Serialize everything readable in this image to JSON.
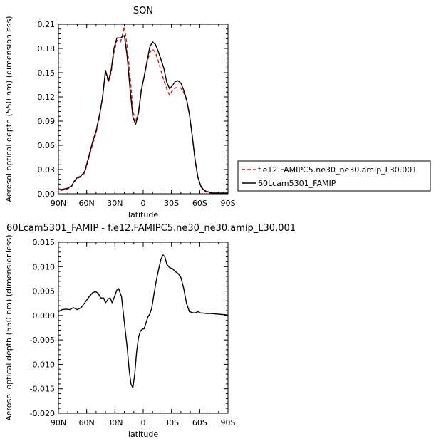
{
  "chart_data": [
    {
      "type": "line",
      "title": "SON",
      "xlabel": "latitude",
      "ylabel": "Aerosol optical depth (550 nm) (dimensionless)",
      "xlim": [
        90,
        -90
      ],
      "ylim": [
        0,
        0.21
      ],
      "x_ticks": [
        {
          "value": 90,
          "label": "90N"
        },
        {
          "value": 60,
          "label": "60N"
        },
        {
          "value": 30,
          "label": "30N"
        },
        {
          "value": 0,
          "label": "0"
        },
        {
          "value": -30,
          "label": "30S"
        },
        {
          "value": -60,
          "label": "60S"
        },
        {
          "value": -90,
          "label": "90S"
        }
      ],
      "y_ticks": [
        {
          "value": 0,
          "label": "0.00"
        },
        {
          "value": 0.03,
          "label": "0.03"
        },
        {
          "value": 0.06,
          "label": "0.06"
        },
        {
          "value": 0.09,
          "label": "0.09"
        },
        {
          "value": 0.12,
          "label": "0.12"
        },
        {
          "value": 0.15,
          "label": "0.15"
        },
        {
          "value": 0.18,
          "label": "0.18"
        },
        {
          "value": 0.21,
          "label": "0.21"
        }
      ],
      "legend": {
        "position": "right",
        "entries": [
          {
            "name": "f.e12.FAMIPC5.ne30_ne30.amip_L30.001",
            "color": "#dd1111",
            "style": "dashed"
          },
          {
            "name": "60Lcam5301_FAMIP",
            "color": "#000000",
            "style": "solid"
          }
        ]
      },
      "series": [
        {
          "name": "f.e12.FAMIPC5.ne30_ne30.amip_L30.001",
          "color": "#dd1111",
          "style": "dashed",
          "x": [
            88,
            84,
            80,
            76,
            73,
            70,
            66,
            62,
            58,
            54,
            50,
            46,
            43,
            40,
            37,
            34,
            31,
            28,
            24,
            20,
            17,
            14,
            11,
            8,
            5,
            2,
            -1,
            -4,
            -7,
            -10,
            -13,
            -16,
            -19,
            -22,
            -25,
            -28,
            -31,
            -34,
            -37,
            -40,
            -43,
            -46,
            -49,
            -52,
            -55,
            -58,
            -61,
            -64,
            -67,
            -70,
            -74,
            -78,
            -82,
            -86,
            -90
          ],
          "y": [
            0.004,
            0.005,
            0.006,
            0.009,
            0.015,
            0.019,
            0.021,
            0.026,
            0.043,
            0.06,
            0.075,
            0.098,
            0.122,
            0.152,
            0.138,
            0.15,
            0.175,
            0.19,
            0.188,
            0.207,
            0.182,
            0.147,
            0.103,
            0.089,
            0.102,
            0.13,
            0.145,
            0.162,
            0.175,
            0.179,
            0.175,
            0.164,
            0.152,
            0.14,
            0.13,
            0.122,
            0.128,
            0.131,
            0.132,
            0.131,
            0.125,
            0.116,
            0.098,
            0.072,
            0.042,
            0.02,
            0.009,
            0.004,
            0.002,
            0.001,
            0.001,
            0.001,
            0.001,
            0.001,
            0.001
          ]
        },
        {
          "name": "60Lcam5301_FAMIP",
          "color": "#000000",
          "style": "solid",
          "x": [
            88,
            84,
            80,
            76,
            73,
            70,
            66,
            62,
            58,
            54,
            50,
            46,
            43,
            40,
            37,
            34,
            31,
            28,
            24,
            20,
            17,
            14,
            11,
            8,
            5,
            2,
            -1,
            -4,
            -7,
            -10,
            -13,
            -16,
            -19,
            -22,
            -25,
            -28,
            -31,
            -34,
            -37,
            -40,
            -43,
            -46,
            -49,
            -52,
            -55,
            -58,
            -61,
            -64,
            -67,
            -70,
            -74,
            -78,
            -82,
            -86,
            -90
          ],
          "y": [
            0.005,
            0.006,
            0.007,
            0.01,
            0.016,
            0.02,
            0.022,
            0.028,
            0.045,
            0.063,
            0.078,
            0.1,
            0.12,
            0.153,
            0.14,
            0.153,
            0.18,
            0.193,
            0.193,
            0.196,
            0.17,
            0.13,
            0.095,
            0.086,
            0.1,
            0.128,
            0.145,
            0.164,
            0.182,
            0.188,
            0.185,
            0.176,
            0.166,
            0.155,
            0.138,
            0.13,
            0.134,
            0.139,
            0.14,
            0.137,
            0.128,
            0.117,
            0.099,
            0.072,
            0.043,
            0.021,
            0.01,
            0.005,
            0.003,
            0.002,
            0.001,
            0.001,
            0.001,
            0.001,
            0.001
          ]
        }
      ]
    },
    {
      "type": "line",
      "title": "60Lcam5301_FAMIP - f.e12.FAMIPC5.ne30_ne30.amip_L30.001",
      "xlabel": "latitude",
      "ylabel": "Aerosol optical depth (550 nm) (dimensionless)",
      "xlim": [
        90,
        -90
      ],
      "ylim": [
        -0.02,
        0.015
      ],
      "x_ticks": [
        {
          "value": 90,
          "label": "90N"
        },
        {
          "value": 60,
          "label": "60N"
        },
        {
          "value": 30,
          "label": "30N"
        },
        {
          "value": 0,
          "label": "0"
        },
        {
          "value": -30,
          "label": "30S"
        },
        {
          "value": -60,
          "label": "60S"
        },
        {
          "value": -90,
          "label": "90S"
        }
      ],
      "y_ticks": [
        {
          "value": -0.02,
          "label": "-0.020"
        },
        {
          "value": -0.015,
          "label": "-0.015"
        },
        {
          "value": -0.01,
          "label": "-0.010"
        },
        {
          "value": -0.005,
          "label": "-0.005"
        },
        {
          "value": 0,
          "label": "0.000"
        },
        {
          "value": 0.005,
          "label": "0.005"
        },
        {
          "value": 0.01,
          "label": "0.010"
        },
        {
          "value": 0.015,
          "label": "0.015"
        }
      ],
      "series": [
        {
          "color": "#000000",
          "style": "solid",
          "x": [
            90,
            86,
            82,
            78,
            74,
            70,
            66,
            62,
            58,
            54,
            51,
            48,
            45,
            42,
            40,
            37,
            35,
            33,
            30,
            28,
            26,
            23,
            20,
            17,
            15,
            13,
            11,
            9,
            7,
            5,
            3,
            1,
            -1,
            -3,
            -5,
            -7,
            -9,
            -11,
            -13,
            -15,
            -17,
            -19,
            -21,
            -23,
            -25,
            -28,
            -31,
            -34,
            -37,
            -40,
            -43,
            -46,
            -49,
            -52,
            -55,
            -58,
            -61,
            -64,
            -67,
            -72,
            -78,
            -84,
            -90
          ],
          "y": [
            0.0008,
            0.0012,
            0.0013,
            0.0012,
            0.0016,
            0.0012,
            0.0016,
            0.0026,
            0.0037,
            0.0046,
            0.0049,
            0.0046,
            0.0036,
            0.0036,
            0.0026,
            0.0034,
            0.0036,
            0.0026,
            0.0041,
            0.0052,
            0.0055,
            0.0038,
            -0.0015,
            -0.0065,
            -0.011,
            -0.014,
            -0.0148,
            -0.012,
            -0.0075,
            -0.0045,
            -0.0032,
            -0.0028,
            -0.0027,
            -0.0015,
            -0.0003,
            0.0003,
            0.0015,
            0.0038,
            0.0062,
            0.0082,
            0.01,
            0.0116,
            0.0124,
            0.012,
            0.0105,
            0.0098,
            0.0096,
            0.009,
            0.0086,
            0.0078,
            0.0055,
            0.0025,
            0.0008,
            0.0006,
            0.0005,
            0.0008,
            0.0005,
            0.0005,
            0.0004,
            0.0004,
            0.0003,
            0.0002,
            0.0001
          ]
        }
      ]
    }
  ]
}
